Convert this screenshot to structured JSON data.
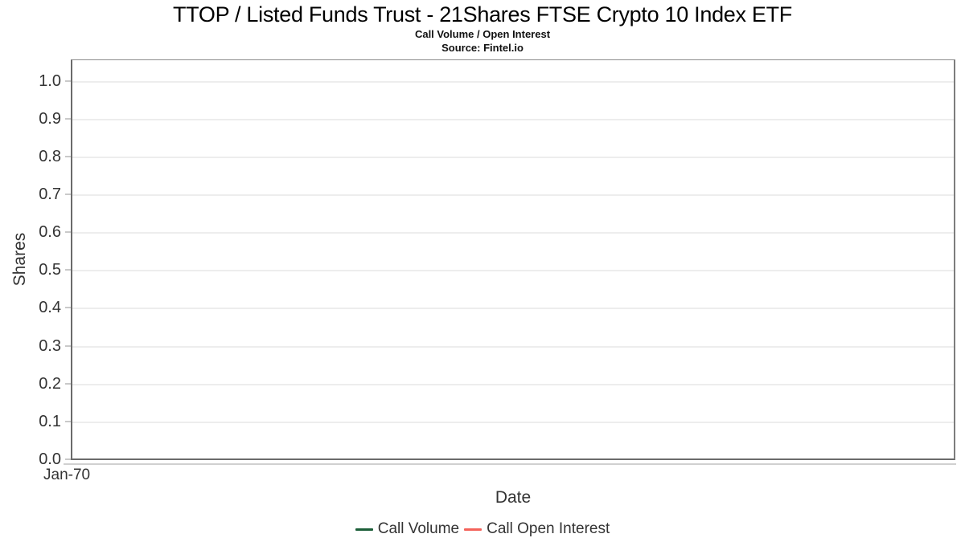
{
  "chart_data": {
    "type": "line",
    "title": "TTOP / Listed Funds Trust - 21Shares FTSE Crypto 10 Index ETF",
    "subtitle": "Call Volume / Open Interest",
    "source": "Source: Fintel.io",
    "xlabel": "Date",
    "ylabel": "Shares",
    "ylim": [
      0.0,
      1.05
    ],
    "y_tick_labels": [
      "1.0",
      "0.9",
      "0.8",
      "0.7",
      "0.6",
      "0.5",
      "0.4",
      "0.3",
      "0.2",
      "0.1",
      "0.0"
    ],
    "x_tick_labels": [
      "Jan-70"
    ],
    "grid": true,
    "legend_position": "bottom-center",
    "series": [
      {
        "name": "Call Volume",
        "color": "#1b5e38",
        "x": [],
        "values": []
      },
      {
        "name": "Call Open Interest",
        "color": "#f4625a",
        "x": [],
        "values": []
      }
    ],
    "colors": {
      "gridline": "#ededed",
      "plot_border": "#6b6b6b",
      "axis_line": "#d0d0d0",
      "tick": "#c9c9c9",
      "label_text": "#333333",
      "title_text": "#000000"
    }
  }
}
